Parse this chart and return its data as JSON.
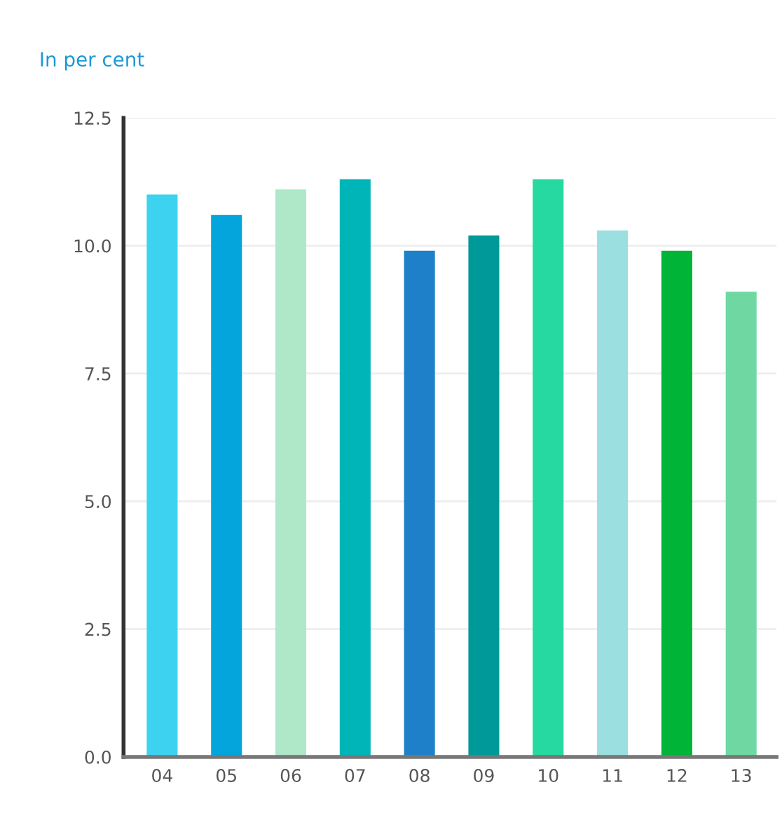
{
  "chart_data": {
    "type": "bar",
    "ylabel": "In per cent",
    "categories": [
      "04",
      "05",
      "06",
      "07",
      "08",
      "09",
      "10",
      "11",
      "12",
      "13"
    ],
    "values": [
      11.0,
      10.6,
      11.1,
      11.3,
      9.9,
      10.2,
      11.3,
      10.3,
      9.9,
      9.1
    ],
    "colors": [
      "#3dd3f0",
      "#03a5dc",
      "#aee8c8",
      "#00b5b8",
      "#1e80c8",
      "#00999a",
      "#26d9a0",
      "#9cdfe0",
      "#00b437",
      "#6fd8a2"
    ],
    "ylim": [
      0,
      12.5
    ],
    "yticks": [
      {
        "value": 0,
        "label": "0.0"
      },
      2.5,
      {
        "value": 5,
        "label": "5.0"
      },
      7.5,
      {
        "value": 10,
        "label": "10.0"
      },
      12.5
    ],
    "grid": "y"
  }
}
